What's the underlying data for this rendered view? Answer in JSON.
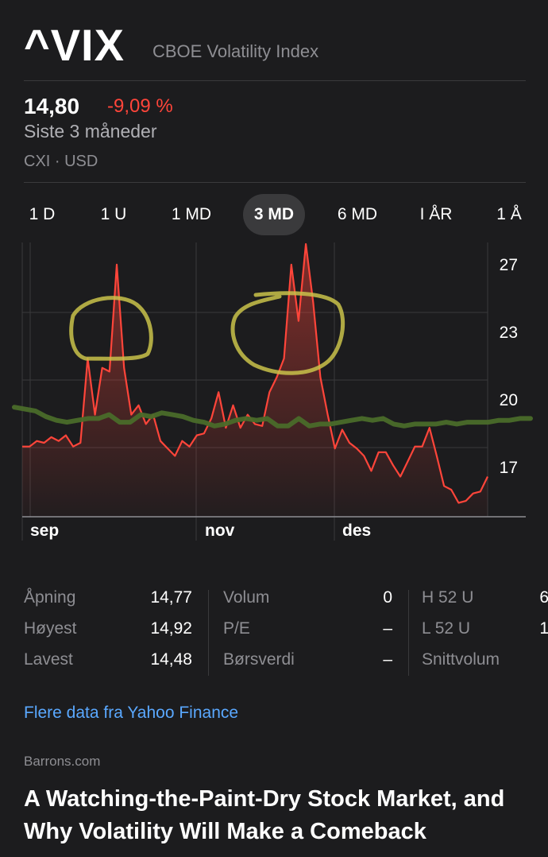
{
  "header": {
    "symbol": "^VIX",
    "name": "CBOE Volatility Index"
  },
  "quote": {
    "price": "14,80",
    "change": "-9,09 %",
    "period": "Siste 3 måneder",
    "exchange": "CXI · USD"
  },
  "ranges": [
    {
      "label": "1 D",
      "active": false
    },
    {
      "label": "1 U",
      "active": false
    },
    {
      "label": "1 MD",
      "active": false
    },
    {
      "label": "3 MD",
      "active": true
    },
    {
      "label": "6 MD",
      "active": false
    },
    {
      "label": "I ÅR",
      "active": false
    },
    {
      "label": "1 Å",
      "active": false
    }
  ],
  "chart_data": {
    "type": "line",
    "x_labels": [
      "sep",
      "nov",
      "des"
    ],
    "y_ticks": [
      "27",
      "23",
      "20",
      "17"
    ],
    "ylim": [
      13.6,
      28.1
    ],
    "series": [
      {
        "color": "#ff453a",
        "values": [
          17.3,
          17.3,
          17.6,
          17.5,
          17.8,
          17.6,
          17.9,
          17.3,
          17.5,
          22.0,
          19.0,
          21.5,
          21.3,
          27.0,
          21.5,
          19.0,
          19.5,
          18.5,
          19.0,
          17.6,
          17.2,
          16.8,
          17.6,
          17.3,
          17.9,
          18.0,
          18.8,
          20.2,
          18.3,
          19.5,
          18.3,
          19.0,
          18.5,
          18.4,
          20.2,
          21.0,
          22.0,
          27.0,
          24.0,
          28.1,
          25.0,
          21.0,
          19.0,
          17.2,
          18.2,
          17.5,
          17.2,
          16.8,
          16.0,
          17.0,
          17.0,
          16.3,
          15.7,
          16.5,
          17.3,
          17.3,
          18.3,
          16.8,
          15.2,
          15.0,
          14.3,
          14.4,
          14.8,
          14.9,
          15.7
        ]
      }
    ],
    "benchmark": {
      "color": "#4a6b2a",
      "values": [
        19.4,
        19.3,
        19.2,
        18.9,
        18.7,
        18.6,
        18.7,
        18.8,
        18.8,
        19.0,
        18.6,
        18.6,
        19.0,
        18.9,
        19.1,
        19.0,
        18.9,
        18.7,
        18.6,
        18.4,
        18.5,
        18.7,
        18.8,
        18.7,
        18.8,
        18.4,
        18.4,
        18.8,
        18.4,
        18.5,
        18.5,
        18.6,
        18.7,
        18.8,
        18.7,
        18.8,
        18.5,
        18.4,
        18.5,
        18.5,
        18.5,
        18.6,
        18.5,
        18.6,
        18.6,
        18.6,
        18.7,
        18.7,
        18.8,
        18.8
      ]
    }
  },
  "stats": {
    "col1": [
      {
        "label": "Åpning",
        "value": "14,77"
      },
      {
        "label": "Høyest",
        "value": "14,92"
      },
      {
        "label": "Lavest",
        "value": "14,48"
      }
    ],
    "col2": [
      {
        "label": "Volum",
        "value": "0"
      },
      {
        "label": "P/E",
        "value": "–"
      },
      {
        "label": "Børsverdi",
        "value": "–"
      }
    ],
    "col3": [
      {
        "label": "H 52 U",
        "value": "6"
      },
      {
        "label": "L 52 U",
        "value": "1"
      },
      {
        "label": "Snittvolum",
        "value": ""
      }
    ]
  },
  "more_link": "Flere data fra Yahoo Finance",
  "news": {
    "source": "Barrons.com",
    "headline": "A Watching-the-Paint-Dry Stock Market, and Why Volatility Will Make a Comeback"
  }
}
